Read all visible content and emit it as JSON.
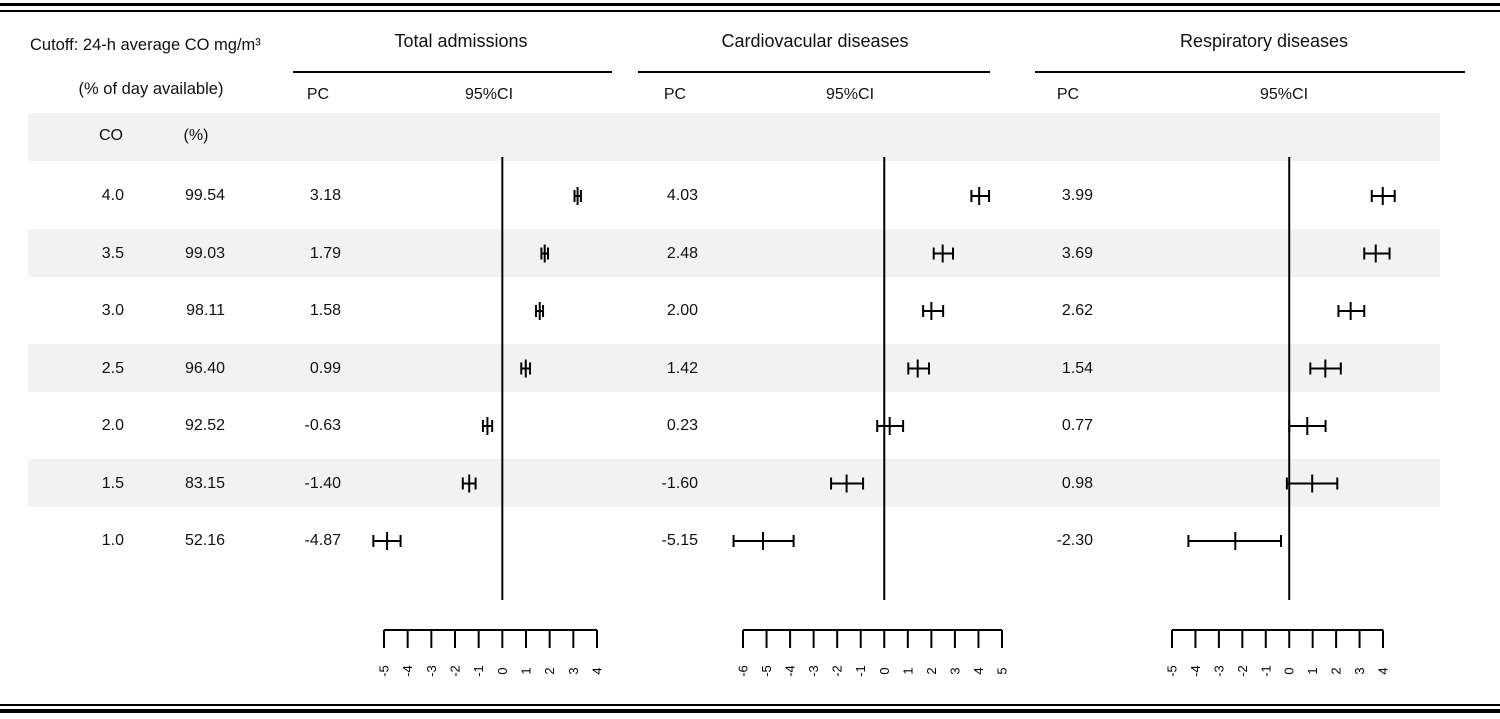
{
  "table": {
    "header": {
      "cutoff_line1": "Cutoff: 24-h average CO mg/m³",
      "cutoff_line2": "(% of day available)",
      "co_label": "CO",
      "pct_label": "(%)"
    },
    "groups": [
      {
        "title": "Total admissions",
        "pc_label": "PC",
        "ci_label": "95%CI"
      },
      {
        "title": "Cardiovacular diseases",
        "pc_label": "PC",
        "ci_label": "95%CI"
      },
      {
        "title": "Respiratory diseases",
        "pc_label": "PC",
        "ci_label": "95%CI"
      }
    ]
  },
  "colors": {
    "ink": "#000000",
    "stripe": "#f2f2f2"
  },
  "chart_data": {
    "type": "forest",
    "description": "Percent change (PC) in daily hospital admissions with 95% CI shown as horizontal error bars against a vertical zero reference line, for different 24-h average CO cutoffs.",
    "rows": [
      {
        "co": "4.0",
        "pct_available": "99.54"
      },
      {
        "co": "3.5",
        "pct_available": "99.03"
      },
      {
        "co": "3.0",
        "pct_available": "98.11"
      },
      {
        "co": "2.5",
        "pct_available": "96.40"
      },
      {
        "co": "2.0",
        "pct_available": "92.52"
      },
      {
        "co": "1.5",
        "pct_available": "83.15"
      },
      {
        "co": "1.0",
        "pct_available": "52.16"
      }
    ],
    "panels": [
      {
        "name": "Total admissions",
        "axis_ticks": [
          -5,
          -4,
          -3,
          -2,
          -1,
          0,
          1,
          2,
          3,
          4
        ],
        "points": [
          {
            "pc": "3.18",
            "ci_low": 3.05,
            "ci_high": 3.32
          },
          {
            "pc": "1.79",
            "ci_low": 1.65,
            "ci_high": 1.93
          },
          {
            "pc": "1.58",
            "ci_low": 1.42,
            "ci_high": 1.72
          },
          {
            "pc": "0.99",
            "ci_low": 0.8,
            "ci_high": 1.17
          },
          {
            "pc": "-0.63",
            "ci_low": -0.82,
            "ci_high": -0.43
          },
          {
            "pc": "-1.40",
            "ci_low": -1.67,
            "ci_high": -1.13
          },
          {
            "pc": "-4.87",
            "ci_low": -5.45,
            "ci_high": -4.3
          }
        ]
      },
      {
        "name": "Cardiovacular diseases",
        "axis_ticks": [
          -6,
          -5,
          -4,
          -3,
          -2,
          -1,
          0,
          1,
          2,
          3,
          4,
          5
        ],
        "points": [
          {
            "pc": "4.03",
            "ci_low": 3.7,
            "ci_high": 4.45
          },
          {
            "pc": "2.48",
            "ci_low": 2.1,
            "ci_high": 2.92
          },
          {
            "pc": "2.00",
            "ci_low": 1.65,
            "ci_high": 2.5
          },
          {
            "pc": "1.42",
            "ci_low": 1.02,
            "ci_high": 1.9
          },
          {
            "pc": "0.23",
            "ci_low": -0.3,
            "ci_high": 0.8
          },
          {
            "pc": "-1.60",
            "ci_low": -2.26,
            "ci_high": -0.9
          },
          {
            "pc": "-5.15",
            "ci_low": -6.4,
            "ci_high": -3.85
          }
        ]
      },
      {
        "name": "Respiratory diseases",
        "axis_ticks": [
          -5,
          -4,
          -3,
          -2,
          -1,
          0,
          1,
          2,
          3,
          4
        ],
        "points": [
          {
            "pc": "3.99",
            "ci_low": 3.52,
            "ci_high": 4.5
          },
          {
            "pc": "3.69",
            "ci_low": 3.2,
            "ci_high": 4.28
          },
          {
            "pc": "2.62",
            "ci_low": 2.1,
            "ci_high": 3.2
          },
          {
            "pc": "1.54",
            "ci_low": 0.9,
            "ci_high": 2.2
          },
          {
            "pc": "0.77",
            "ci_low": 0.0,
            "ci_high": 1.55
          },
          {
            "pc": "0.98",
            "ci_low": -0.1,
            "ci_high": 2.05
          },
          {
            "pc": "-2.30",
            "ci_low": -4.3,
            "ci_high": -0.35
          }
        ]
      }
    ]
  }
}
